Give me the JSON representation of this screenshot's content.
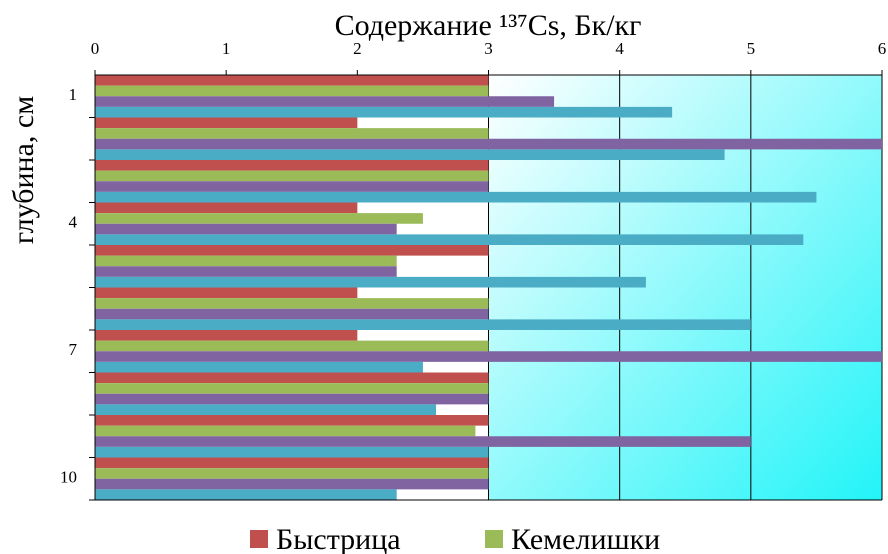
{
  "chart_data": {
    "type": "hbar",
    "title": "Содержание ¹³⁷Cs, Бк/кг",
    "y_label": "глубина, см",
    "categories": [
      "1",
      null,
      null,
      "4",
      null,
      null,
      "7",
      null,
      null,
      "10"
    ],
    "series": [
      {
        "name": "Быстрица",
        "color": "#c0504d",
        "values": [
          3,
          2,
          3,
          2,
          3,
          2,
          2,
          3,
          3,
          3
        ]
      },
      {
        "name": "Кемелишки",
        "color": "#9bbb59",
        "values": [
          3,
          3,
          3,
          2.5,
          2.3,
          3,
          3,
          3,
          2.9,
          3
        ]
      },
      {
        "color": "#8064a2",
        "values": [
          3.5,
          6,
          3,
          2.3,
          2.3,
          3,
          6,
          3,
          5,
          3
        ]
      },
      {
        "color": "#4bacc6",
        "values": [
          4.4,
          4.8,
          5.5,
          5.4,
          4.2,
          5,
          2.5,
          2.6,
          3,
          2.3
        ]
      }
    ],
    "xlim": [
      0,
      6
    ],
    "xticks": [
      0,
      1,
      2,
      3,
      4,
      5,
      6
    ],
    "grid": true
  }
}
